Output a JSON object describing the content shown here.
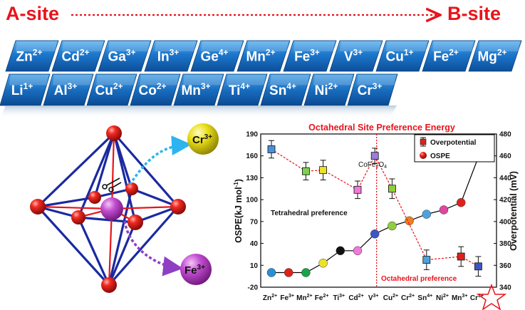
{
  "header": {
    "a_site": "A-site",
    "b_site": "B-site"
  },
  "ion_rows": {
    "row1": [
      {
        "el": "Zn",
        "ch": "2+"
      },
      {
        "el": "Cd",
        "ch": "2+"
      },
      {
        "el": "Ga",
        "ch": "3+"
      },
      {
        "el": "In",
        "ch": "3+"
      },
      {
        "el": "Ge",
        "ch": "4+"
      },
      {
        "el": "Mn",
        "ch": "2+"
      },
      {
        "el": "Fe",
        "ch": "3+"
      },
      {
        "el": "V",
        "ch": "3+"
      },
      {
        "el": "Cu",
        "ch": "1+"
      },
      {
        "el": "Fe",
        "ch": "2+"
      },
      {
        "el": "Mg",
        "ch": "2+"
      }
    ],
    "row2": [
      {
        "el": "Li",
        "ch": "1+"
      },
      {
        "el": "Al",
        "ch": "3+"
      },
      {
        "el": "Cu",
        "ch": "2+"
      },
      {
        "el": "Co",
        "ch": "2+"
      },
      {
        "el": "Mn",
        "ch": "3+"
      },
      {
        "el": "Ti",
        "ch": "4+"
      },
      {
        "el": "Sn",
        "ch": "4+"
      },
      {
        "el": "Ni",
        "ch": "2+"
      },
      {
        "el": "Cr",
        "ch": "3+"
      }
    ]
  },
  "octahedron": {
    "ion_top": {
      "el": "Cr",
      "ch": "3+"
    },
    "ion_bottom": {
      "el": "Fe",
      "ch": "3+"
    }
  },
  "chart_data": {
    "type": "line",
    "title": "Octahedral Site Preference Energy",
    "ylabel_left": "OSPE(kJ mol",
    "ylabel_left_sup": "-1",
    "ylabel_left_end": ")",
    "ylabel_right": "Overpotential (mV)",
    "categories": [
      {
        "el": "Zn",
        "ch": "2+"
      },
      {
        "el": "Fe",
        "ch": "3+"
      },
      {
        "el": "Mn",
        "ch": "2+"
      },
      {
        "el": "Fe",
        "ch": "2+"
      },
      {
        "el": "Ti",
        "ch": "3+"
      },
      {
        "el": "Cd",
        "ch": "2+"
      },
      {
        "el": "V",
        "ch": "3+"
      },
      {
        "el": "Cu",
        "ch": "2+"
      },
      {
        "el": "Cr",
        "ch": "2+"
      },
      {
        "el": "Sn",
        "ch": "4+"
      },
      {
        "el": "Ni",
        "ch": "2+"
      },
      {
        "el": "Mn",
        "ch": "3+"
      },
      {
        "el": "Cr",
        "ch": "3+"
      }
    ],
    "yticks_left": [
      "-20",
      "10",
      "40",
      "70",
      "100",
      "130",
      "160",
      "190"
    ],
    "ylim_left": [
      -20,
      190
    ],
    "yticks_right": [
      "340",
      "360",
      "380",
      "400",
      "420",
      "440",
      "460",
      "480"
    ],
    "ylim_right": [
      340,
      480
    ],
    "ospe": {
      "name": "OSPE",
      "values": [
        0,
        0,
        0,
        13,
        30,
        30,
        53,
        64,
        71,
        80,
        86,
        96,
        158
      ],
      "colors": [
        "#2a8fd6",
        "#e0201b",
        "#17a34a",
        "#ece22a",
        "#111111",
        "#f07ad8",
        "#3d56c6",
        "#8fce3c",
        "#f07f1b",
        "#4aa3e0",
        "#e0459f",
        "#e0201b",
        "#2f7fd0"
      ]
    },
    "overpotential": {
      "name": "Overpotential",
      "points": [
        {
          "cat": 0,
          "value": 466,
          "err": 8,
          "color": "#4a90d9"
        },
        {
          "cat": 2,
          "value": 446,
          "err": 8,
          "color": "#7fcf52"
        },
        {
          "cat": 3,
          "value": 447,
          "err": 9,
          "color": "#ece22a"
        },
        {
          "cat": 5,
          "value": 429,
          "err": 8,
          "color": "#f07ad8"
        },
        {
          "cat": 6,
          "value": 460,
          "err": 7,
          "color": "#9b7fd8"
        },
        {
          "cat": 7,
          "value": 430,
          "err": 9,
          "color": "#8fce3c"
        },
        {
          "cat": 9,
          "value": 365,
          "err": 9,
          "color": "#4aa3e0"
        },
        {
          "cat": 11,
          "value": 368,
          "err": 9,
          "color": "#e0201b"
        },
        {
          "cat": 12,
          "value": 359,
          "err": 9,
          "color": "#3d56c6"
        }
      ]
    },
    "divider_category": 6,
    "annotations": {
      "cofe": "CoFe",
      "cofe_sub1": "2",
      "cofe_mid": "O",
      "cofe_sub2": "4",
      "tetra": "Tetrahedral preference",
      "octa": "Octahedral preference"
    },
    "legend": [
      "Overpotential",
      "OSPE"
    ],
    "legend_position": "top-right",
    "grid": false
  },
  "colors": {
    "accent_red": "#e8141b",
    "tile_blue": "#1b6fc4",
    "sphere_red": "#d8141a"
  }
}
